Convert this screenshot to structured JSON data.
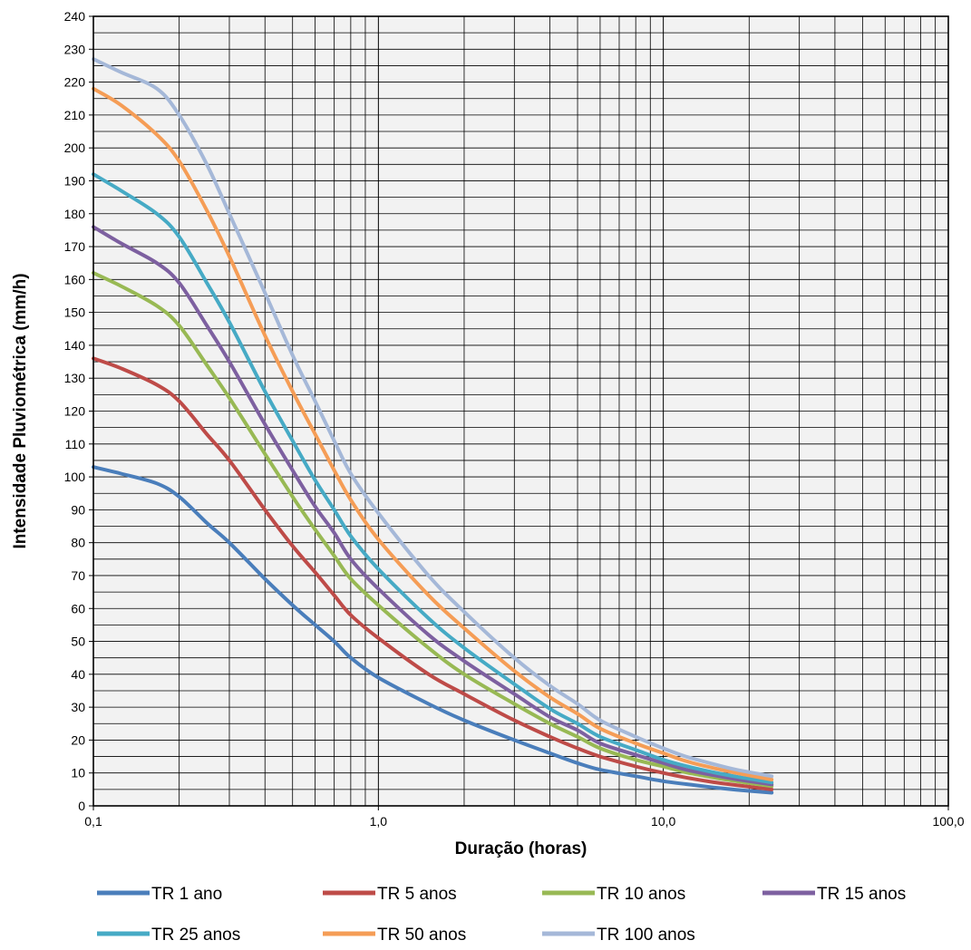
{
  "chart_data": {
    "type": "line",
    "title": "",
    "xlabel": "Duração (horas)",
    "ylabel": "Intensidade Pluviométrica (mm/h)",
    "x_scale": "log",
    "xlim": [
      0.1,
      100
    ],
    "ylim": [
      0,
      240
    ],
    "grid": true,
    "legend_position": "bottom",
    "x_tick_labels": [
      "0,1",
      "1,0",
      "10,0",
      "100,0"
    ],
    "y_tick_labels": [
      "0",
      "10",
      "20",
      "30",
      "40",
      "50",
      "60",
      "70",
      "80",
      "90",
      "100",
      "110",
      "120",
      "130",
      "140",
      "150",
      "160",
      "170",
      "180",
      "190",
      "200",
      "210",
      "220",
      "230",
      "240"
    ],
    "x": [
      0.1,
      0.125,
      0.167,
      0.2,
      0.25,
      0.3,
      0.4,
      0.5,
      0.6,
      0.7,
      0.8,
      1.0,
      1.5,
      2,
      3,
      4,
      5,
      6,
      8,
      10,
      12,
      15,
      18,
      24
    ],
    "series": [
      {
        "name": "TR 1 ano",
        "color": "#4a7ebb",
        "values": [
          103,
          101,
          98,
          94,
          86,
          80,
          69,
          61,
          55,
          50,
          45,
          39,
          31,
          26,
          20,
          16,
          13,
          11,
          9,
          7.5,
          6.6,
          5.6,
          4.9,
          4
        ]
      },
      {
        "name": "TR 5 anos",
        "color": "#be4b48",
        "values": [
          136,
          133,
          128,
          123,
          113,
          105,
          90,
          79,
          71,
          64,
          58,
          51,
          40,
          34,
          26,
          21,
          17.5,
          15,
          12,
          10,
          8.6,
          7.2,
          6.3,
          5
        ]
      },
      {
        "name": "TR 10 anos",
        "color": "#98b954",
        "values": [
          162,
          158,
          152,
          146,
          134,
          124,
          107,
          94,
          84,
          76,
          69,
          61,
          48,
          40,
          31,
          25,
          21,
          17.5,
          14,
          12,
          10.2,
          8.6,
          7.5,
          6
        ]
      },
      {
        "name": "TR 15 anos",
        "color": "#7d60a0",
        "values": [
          176,
          171,
          165,
          159,
          146,
          135,
          116,
          102,
          91,
          83,
          75,
          66,
          52,
          44,
          34,
          27,
          23,
          19,
          15.5,
          13,
          11,
          9.3,
          8.1,
          6.5
        ]
      },
      {
        "name": "TR 25 anos",
        "color": "#46aac5",
        "values": [
          192,
          187,
          180,
          173,
          159,
          147,
          126,
          111,
          99,
          90,
          82,
          72,
          57,
          48,
          37,
          29.5,
          25,
          21,
          17,
          14,
          12.1,
          10.2,
          8.9,
          7.1
        ]
      },
      {
        "name": "TR 50 anos",
        "color": "#f59d56",
        "values": [
          218,
          213,
          204,
          196,
          181,
          167,
          143,
          126,
          113,
          102,
          93,
          81,
          64,
          54,
          41,
          33,
          28,
          23.5,
          19,
          16,
          13.6,
          11.5,
          10,
          8
        ]
      },
      {
        "name": "TR 100 anos",
        "color": "#a5b8d8",
        "values": [
          227,
          223,
          218,
          210,
          195,
          180,
          156,
          137,
          123,
          111,
          101,
          89,
          70,
          59,
          45,
          36.5,
          31,
          26,
          21,
          17.5,
          15,
          12.7,
          11,
          9
        ]
      }
    ]
  }
}
